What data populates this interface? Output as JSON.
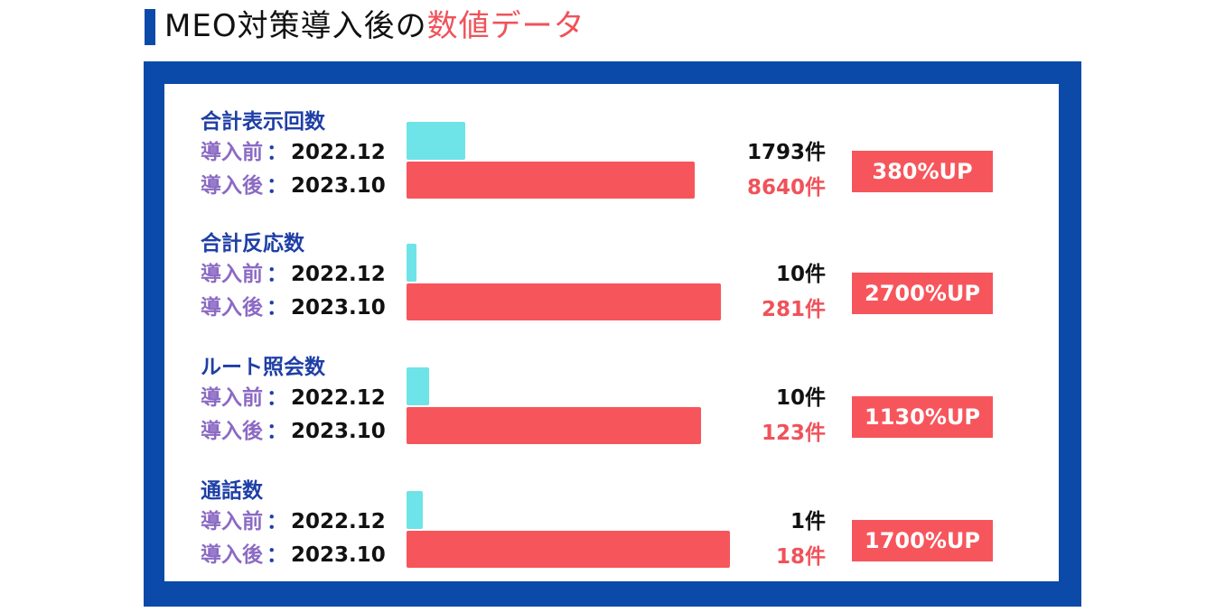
{
  "header": {
    "title_main": "MEO対策導入後の",
    "title_accent": "数値データ"
  },
  "labels": {
    "before": "導入前",
    "after": "導入後",
    "separator": "：",
    "date_before": "2022.12",
    "date_after": "2023.10"
  },
  "colors": {
    "frame": "#0b4aa8",
    "before_bar": "#6ee3e8",
    "after_bar": "#f7555c",
    "accent_text": "#f0525a",
    "metric_title": "#1f3fa6",
    "period_label": "#8b6ac4"
  },
  "chart_data": {
    "type": "bar",
    "categories": [
      "合計表示回数",
      "合計反応数",
      "ルート照会数",
      "通話数"
    ],
    "series": [
      {
        "name": "導入前：2022.12",
        "values": [
          1793,
          10,
          10,
          1
        ]
      },
      {
        "name": "導入後：2023.10",
        "values": [
          8640,
          281,
          123,
          18
        ]
      }
    ],
    "value_labels_before": [
      "1793件",
      "10件",
      "10件",
      "1件"
    ],
    "value_labels_after": [
      "8640件",
      "281件",
      "123件",
      "18件"
    ],
    "badges": [
      "380%UP",
      "2700%UP",
      "1130%UP",
      "1700%UP"
    ],
    "bar_fill_before": [
      0.18,
      0.03,
      0.07,
      0.05
    ],
    "bar_fill_after": [
      0.88,
      0.96,
      0.9,
      0.99
    ],
    "title": "MEO対策導入後の数値データ",
    "xlabel": "",
    "ylabel": ""
  }
}
